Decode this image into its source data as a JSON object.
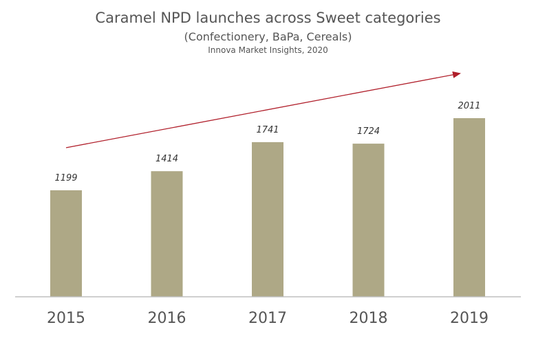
{
  "chart_data": {
    "type": "bar",
    "title": "Caramel NPD launches across Sweet categories",
    "subtitle": "(Confectionery, BaPa, Cereals)",
    "source": "Innova Market Insights, 2020",
    "categories": [
      "2015",
      "2016",
      "2017",
      "2018",
      "2019"
    ],
    "values": [
      1199,
      1414,
      1741,
      1724,
      2011
    ],
    "xlabel": "",
    "ylabel": "",
    "ylim": [
      0,
      2011
    ],
    "grid": false,
    "legend": "none",
    "annotations": [
      {
        "type": "trend-arrow",
        "from": "2015",
        "to": "2019",
        "color": "#b01e2a"
      }
    ]
  },
  "colors": {
    "bar": "#aea886",
    "axis": "#bfbfbf",
    "arrow": "#b01e2a",
    "text": "#555555",
    "value_label": "#333333"
  }
}
